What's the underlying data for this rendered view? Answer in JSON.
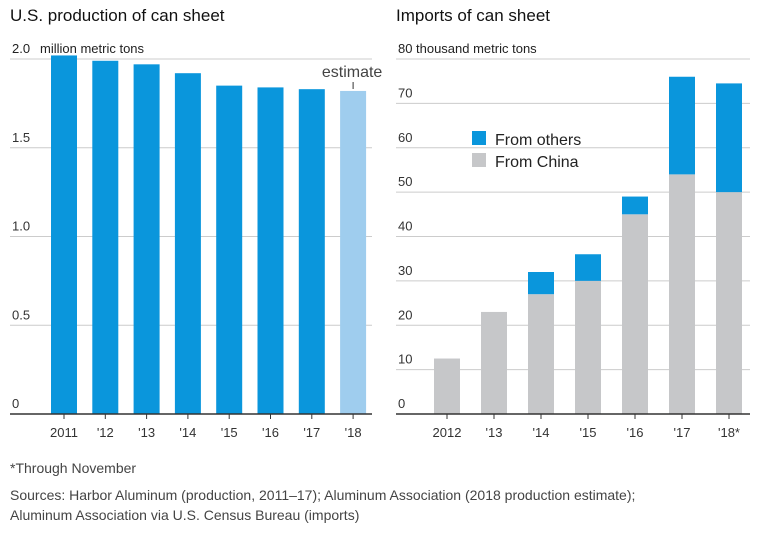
{
  "colors": {
    "blue": "#0a96dc",
    "light_blue": "#9fcdee",
    "gray": "#c6c7c9",
    "grid": "#cccccc",
    "axis": "#333333"
  },
  "chart_data": [
    {
      "type": "bar",
      "title": "U.S. production of can sheet",
      "ylabel": "million metric tons",
      "ylim": [
        0,
        2.0
      ],
      "yticks": [
        "0",
        "0.5",
        "1.0",
        "1.5",
        "2.0"
      ],
      "categories": [
        "2011",
        "'12",
        "'13",
        "'14",
        "'15",
        "'16",
        "'17",
        "'18"
      ],
      "values": [
        2.02,
        1.99,
        1.97,
        1.92,
        1.85,
        1.84,
        1.83,
        1.82
      ],
      "estimate_index": 7,
      "annotation": "estimate"
    },
    {
      "type": "bar",
      "stacked": true,
      "title": "Imports of can sheet",
      "ylabel": "thousand metric tons",
      "ylim": [
        0,
        80
      ],
      "yticks": [
        "0",
        "10",
        "20",
        "30",
        "40",
        "50",
        "60",
        "70",
        "80"
      ],
      "categories": [
        "2012",
        "'13",
        "'14",
        "'15",
        "'16",
        "'17",
        "'18*"
      ],
      "series": [
        {
          "name": "From China",
          "values": [
            12.5,
            23,
            27,
            30,
            45,
            54,
            50
          ]
        },
        {
          "name": "From others",
          "values": [
            0,
            0,
            5,
            6,
            4,
            22,
            24.5
          ]
        }
      ],
      "legend": [
        "From others",
        "From China"
      ]
    }
  ],
  "footnote": "*Through November",
  "sources_line1": "Sources: Harbor Aluminum (production, 2011–17); Aluminum Association (2018 production estimate);",
  "sources_line2": "Aluminum Association via U.S. Census Bureau (imports)"
}
